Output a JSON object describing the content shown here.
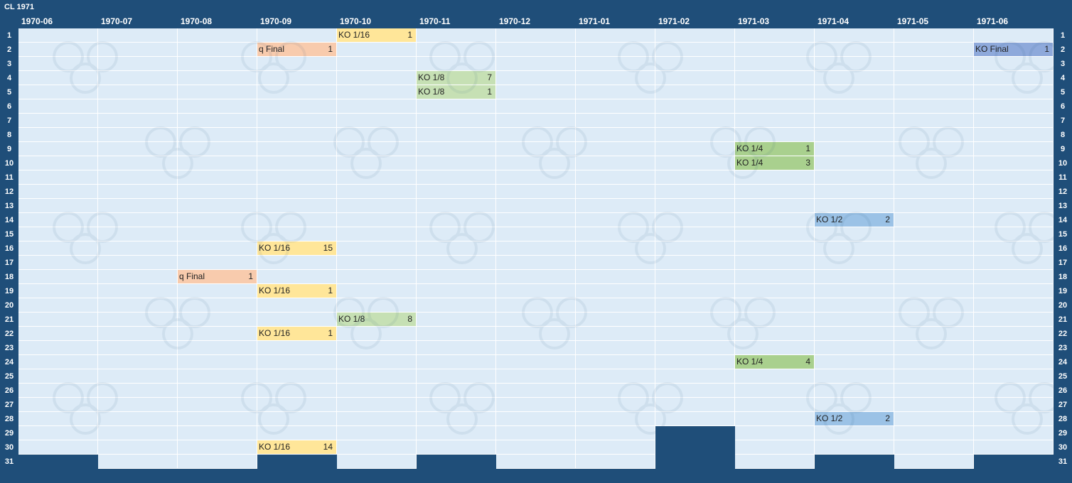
{
  "title": "CL 1971",
  "chart_data": {
    "type": "table",
    "title": "CL 1971",
    "months": [
      "1970-06",
      "1970-07",
      "1970-08",
      "1970-09",
      "1970-10",
      "1970-11",
      "1970-12",
      "1971-01",
      "1971-02",
      "1971-03",
      "1971-04",
      "1971-05",
      "1971-06"
    ],
    "days_in_month": [
      30,
      31,
      31,
      30,
      31,
      30,
      31,
      31,
      28,
      31,
      30,
      31,
      30
    ],
    "days": [
      1,
      2,
      3,
      4,
      5,
      6,
      7,
      8,
      9,
      10,
      11,
      12,
      13,
      14,
      15,
      16,
      17,
      18,
      19,
      20,
      21,
      22,
      23,
      24,
      25,
      26,
      27,
      28,
      29,
      30,
      31
    ],
    "events": [
      {
        "month": "1970-10",
        "day": 1,
        "label": "KO 1/16",
        "count": "1",
        "stage": "ko16"
      },
      {
        "month": "1970-09",
        "day": 2,
        "label": "q Final",
        "count": "1",
        "stage": "qual"
      },
      {
        "month": "1971-06",
        "day": 2,
        "label": "KO Final",
        "count": "1",
        "stage": "final"
      },
      {
        "month": "1970-11",
        "day": 4,
        "label": "KO 1/8",
        "count": "7",
        "stage": "ko8"
      },
      {
        "month": "1970-11",
        "day": 5,
        "label": "KO 1/8",
        "count": "1",
        "stage": "ko8"
      },
      {
        "month": "1971-03",
        "day": 9,
        "label": "KO 1/4",
        "count": "1",
        "stage": "ko4"
      },
      {
        "month": "1971-03",
        "day": 10,
        "label": "KO 1/4",
        "count": "3",
        "stage": "ko4"
      },
      {
        "month": "1971-04",
        "day": 14,
        "label": "KO 1/2",
        "count": "2",
        "stage": "ko2"
      },
      {
        "month": "1970-09",
        "day": 16,
        "label": "KO 1/16",
        "count": "15",
        "stage": "ko16"
      },
      {
        "month": "1970-08",
        "day": 18,
        "label": "q Final",
        "count": "1",
        "stage": "qual"
      },
      {
        "month": "1970-09",
        "day": 19,
        "label": "KO 1/16",
        "count": "1",
        "stage": "ko16"
      },
      {
        "month": "1970-10",
        "day": 21,
        "label": "KO 1/8",
        "count": "8",
        "stage": "ko8"
      },
      {
        "month": "1970-09",
        "day": 22,
        "label": "KO 1/16",
        "count": "1",
        "stage": "ko16"
      },
      {
        "month": "1971-03",
        "day": 24,
        "label": "KO 1/4",
        "count": "4",
        "stage": "ko4"
      },
      {
        "month": "1971-04",
        "day": 28,
        "label": "KO 1/2",
        "count": "2",
        "stage": "ko2"
      },
      {
        "month": "1970-09",
        "day": 30,
        "label": "KO 1/16",
        "count": "14",
        "stage": "ko16"
      }
    ],
    "stage_colors": {
      "qual": "#f8cbad",
      "ko16": "#ffe699",
      "ko8": "#c6e0b4",
      "ko4": "#a9d08e",
      "ko2": "#9bc2e6",
      "final": "#8ea9db"
    },
    "colors": {
      "background": "#1f4e79",
      "cell": "#ddebf7",
      "gridline": "#ffffff"
    }
  }
}
